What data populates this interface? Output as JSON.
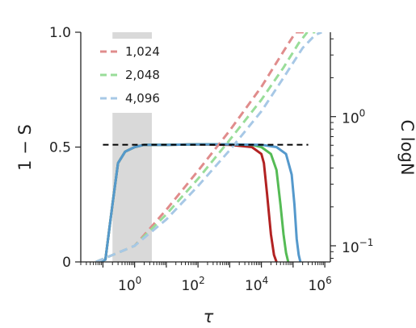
{
  "chart_data": {
    "type": "line",
    "title": "",
    "xlabel": "τ",
    "ylabel_left": "1 − S",
    "ylabel_right": "C logN",
    "x_scale": "log",
    "xlim": [
      0.02,
      1500000
    ],
    "ylim_left": [
      0,
      1
    ],
    "y_scale_right": "log",
    "ylim_right": [
      0.075,
      4.5
    ],
    "x_ticks": [
      {
        "value": 1,
        "base": "10",
        "exp": "0"
      },
      {
        "value": 100,
        "base": "10",
        "exp": "2"
      },
      {
        "value": 10000,
        "base": "10",
        "exp": "4"
      },
      {
        "value": 1000000,
        "base": "10",
        "exp": "6"
      }
    ],
    "y_ticks_left": [
      {
        "value": 0,
        "label": "0"
      },
      {
        "value": 0.5,
        "label": "0.5"
      },
      {
        "value": 1,
        "label": "1.0"
      }
    ],
    "y_ticks_right": [
      {
        "value": 0.1,
        "base": "10",
        "exp": "−1"
      },
      {
        "value": 1,
        "base": "10",
        "exp": "0"
      }
    ],
    "shaded_region": {
      "x_start": 0.2,
      "x_end": 3.5,
      "color": "#d9d9d9"
    },
    "reference_line": {
      "y": 0.51,
      "x_start": 0.1,
      "x_end": 300000,
      "style": "dashed",
      "color": "#000000"
    },
    "legend": {
      "position": "top-left",
      "entries": [
        "1,024",
        "2,048",
        "4,096"
      ]
    },
    "series": [
      {
        "name": "1,024",
        "axis": "left",
        "style": "solid",
        "color": "#b22222",
        "x": [
          0.08,
          0.12,
          0.2,
          0.3,
          0.5,
          1,
          2,
          5,
          10,
          100,
          1000,
          5000,
          10000,
          12000,
          15000,
          20000,
          25000,
          30000
        ],
        "y": [
          0,
          0.01,
          0.25,
          0.43,
          0.48,
          0.5,
          0.51,
          0.51,
          0.51,
          0.512,
          0.51,
          0.5,
          0.47,
          0.43,
          0.3,
          0.12,
          0.03,
          0
        ]
      },
      {
        "name": "2,048",
        "axis": "left",
        "style": "solid",
        "color": "#55bb55",
        "x": [
          0.08,
          0.12,
          0.2,
          0.3,
          0.5,
          1,
          2,
          5,
          10,
          100,
          1000,
          5000,
          10000,
          20000,
          30000,
          40000,
          50000,
          60000,
          70000
        ],
        "y": [
          0,
          0.01,
          0.25,
          0.43,
          0.48,
          0.5,
          0.51,
          0.51,
          0.51,
          0.512,
          0.512,
          0.51,
          0.5,
          0.47,
          0.4,
          0.25,
          0.12,
          0.04,
          0
        ]
      },
      {
        "name": "4,096",
        "axis": "left",
        "style": "solid",
        "color": "#5599cc",
        "x": [
          0.08,
          0.12,
          0.2,
          0.3,
          0.5,
          1,
          2,
          5,
          10,
          100,
          1000,
          10000,
          30000,
          60000,
          90000,
          110000,
          130000,
          150000,
          170000
        ],
        "y": [
          0,
          0.01,
          0.25,
          0.43,
          0.48,
          0.5,
          0.51,
          0.51,
          0.51,
          0.512,
          0.512,
          0.51,
          0.5,
          0.47,
          0.38,
          0.25,
          0.1,
          0.03,
          0
        ]
      },
      {
        "name": "1,024",
        "axis": "right",
        "style": "dashed",
        "color": "#e08c8c",
        "x": [
          0.06,
          1,
          10,
          100,
          1000,
          10000,
          50000,
          120000,
          300000
        ],
        "y": [
          0.075,
          0.1,
          0.19,
          0.38,
          0.78,
          1.7,
          3.2,
          4.5,
          4.5
        ]
      },
      {
        "name": "2,048",
        "axis": "right",
        "style": "dashed",
        "color": "#99dd99",
        "x": [
          0.06,
          1,
          10,
          100,
          1000,
          10000,
          50000,
          150000,
          280000,
          500000
        ],
        "y": [
          0.075,
          0.1,
          0.175,
          0.33,
          0.66,
          1.35,
          2.4,
          3.7,
          4.5,
          4.5
        ]
      },
      {
        "name": "4,096",
        "axis": "right",
        "style": "dashed",
        "color": "#a7c8e6",
        "x": [
          0.06,
          1,
          10,
          100,
          1000,
          10000,
          50000,
          200000,
          500000,
          800000
        ],
        "y": [
          0.075,
          0.1,
          0.16,
          0.29,
          0.55,
          1.1,
          2.0,
          3.4,
          4.3,
          4.5
        ]
      }
    ]
  }
}
